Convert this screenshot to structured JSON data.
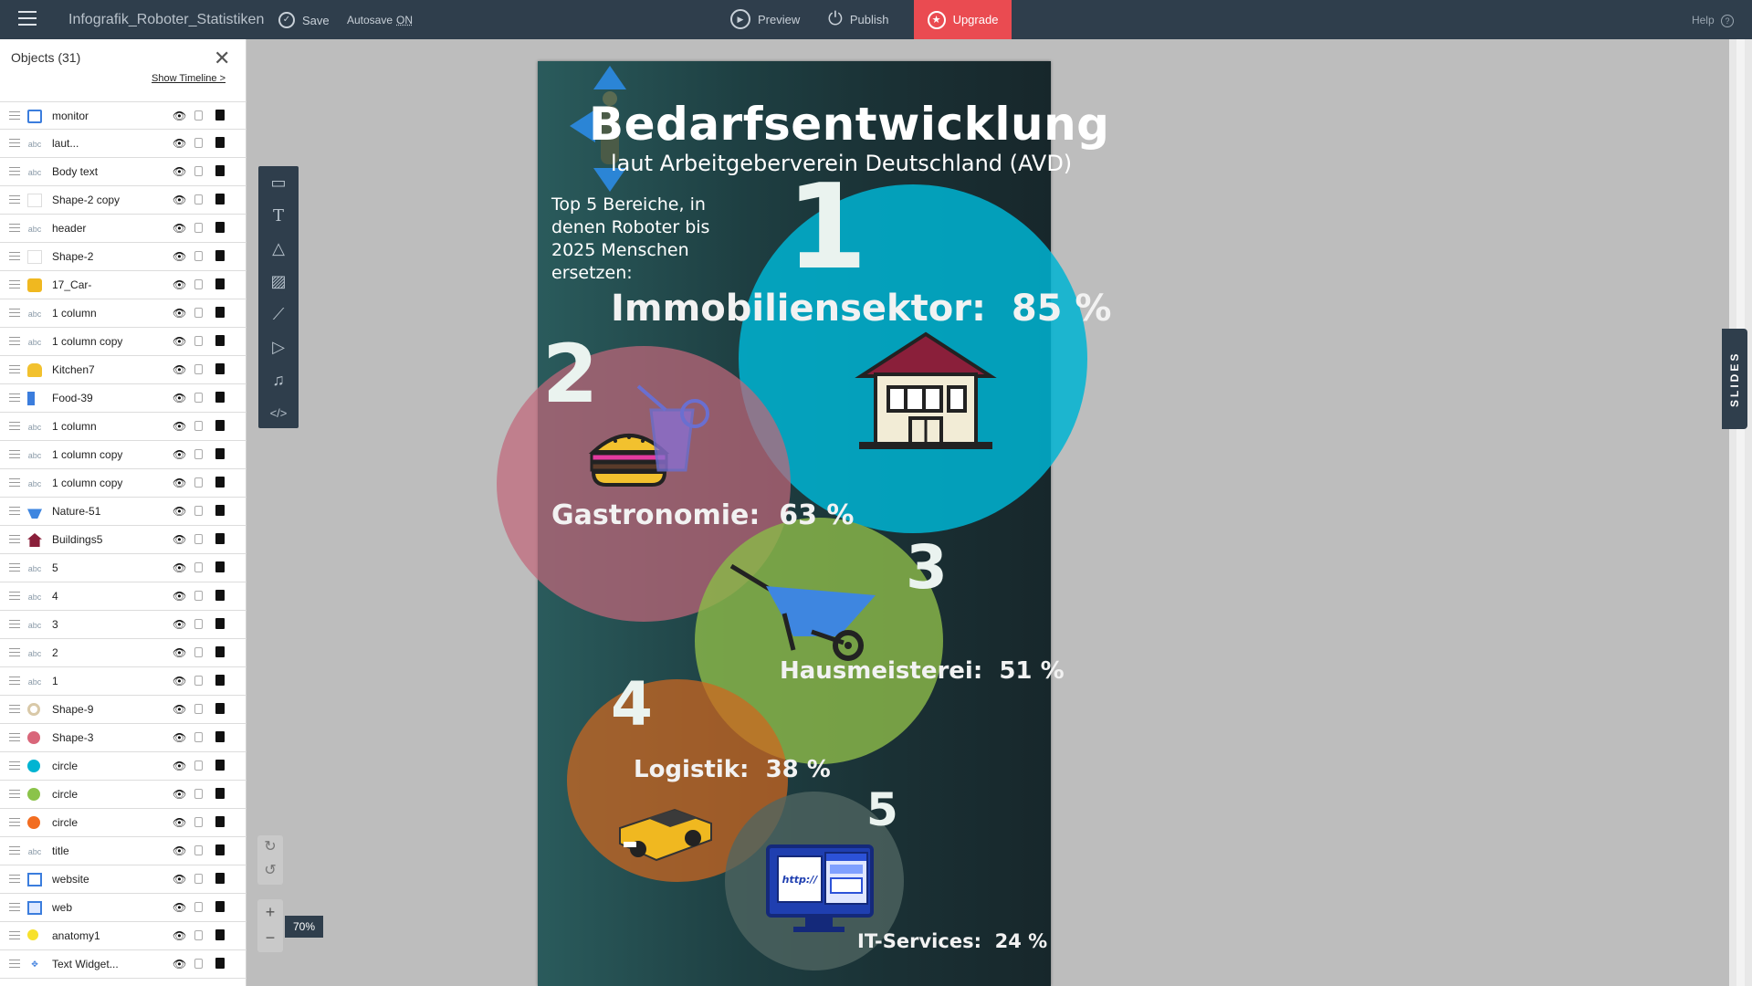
{
  "topbar": {
    "doc_title": "Infografik_Roboter_Statistiken",
    "save_label": "Save",
    "autosave_label": "Autosave",
    "autosave_state": "ON",
    "preview_label": "Preview",
    "publish_label": "Publish",
    "upgrade_label": "Upgrade",
    "help_label": "Help"
  },
  "panel": {
    "title": "Objects (31)",
    "timeline_link": "Show Timeline >",
    "items": [
      {
        "label": "monitor",
        "icon": "monitor-icon"
      },
      {
        "label": "laut...",
        "icon": "text-icon"
      },
      {
        "label": "Body text",
        "icon": "text-icon"
      },
      {
        "label": "Shape-2 copy",
        "icon": "white-square-icon"
      },
      {
        "label": "header",
        "icon": "text-icon"
      },
      {
        "label": "Shape-2",
        "icon": "white-square-icon"
      },
      {
        "label": "17_Car-",
        "icon": "car-icon"
      },
      {
        "label": "1 column",
        "icon": "text-icon"
      },
      {
        "label": "1 column copy",
        "icon": "text-icon"
      },
      {
        "label": "Kitchen7",
        "icon": "burger-icon"
      },
      {
        "label": "Food-39",
        "icon": "drink-icon"
      },
      {
        "label": "1 column",
        "icon": "text-icon"
      },
      {
        "label": "1 column copy",
        "icon": "text-icon"
      },
      {
        "label": "1 column copy",
        "icon": "text-icon"
      },
      {
        "label": "Nature-51",
        "icon": "wheelbarrow-icon"
      },
      {
        "label": "Buildings5",
        "icon": "house-icon"
      },
      {
        "label": "5",
        "icon": "text-icon"
      },
      {
        "label": "4",
        "icon": "text-icon"
      },
      {
        "label": "3",
        "icon": "text-icon"
      },
      {
        "label": "2",
        "icon": "text-icon"
      },
      {
        "label": "1",
        "icon": "text-icon"
      },
      {
        "label": "Shape-9",
        "icon": "ring-icon"
      },
      {
        "label": "Shape-3",
        "icon": "pink-circle-icon"
      },
      {
        "label": "circle",
        "icon": "cyan-circle-icon"
      },
      {
        "label": "circle",
        "icon": "green-circle-icon"
      },
      {
        "label": "circle",
        "icon": "orange-circle-icon"
      },
      {
        "label": "title",
        "icon": "text-icon"
      },
      {
        "label": "website",
        "icon": "website-icon"
      },
      {
        "label": "web",
        "icon": "web-icon"
      },
      {
        "label": "anatomy1",
        "icon": "anatomy-icon"
      },
      {
        "label": "Text Widget...",
        "icon": "widget-icon"
      }
    ],
    "text_icon_glyph": "abc"
  },
  "zoom": "70%",
  "slides_label": "SLIDES",
  "infographic": {
    "title": "Bedarfsentwicklung",
    "subtitle": "laut Arbeitgeberverein Deutschland (AVD)",
    "intro": "Top 5 Bereiche, in denen Roboter bis 2025 Menschen ersetzen:",
    "items": [
      {
        "rank": "1",
        "label": "Immobiliensektor:",
        "value": "85 %",
        "color": "#00b4d2"
      },
      {
        "rank": "2",
        "label": "Gastronomie:",
        "value": "63 %",
        "color": "#c0667a"
      },
      {
        "rank": "3",
        "label": "Hausmeisterei:",
        "value": "51 %",
        "color": "#8bb849"
      },
      {
        "rank": "4",
        "label": "Logistik:",
        "value": "38 %",
        "color": "#d0661f"
      },
      {
        "rank": "5",
        "label": "IT-Services:",
        "value": "24 %",
        "color": "#4f6561"
      }
    ],
    "website_text": "http://"
  },
  "colors": {
    "topbar_bg": "#2f3e4c",
    "upgrade_bg": "#ea4b51",
    "canvas_bg": "#1e3f42"
  }
}
